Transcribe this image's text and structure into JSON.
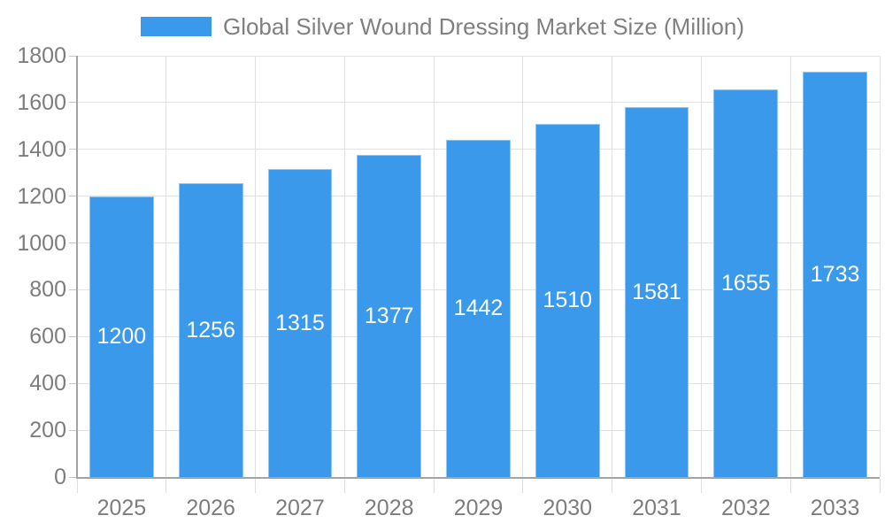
{
  "chart_data": {
    "type": "bar",
    "title": "Global Silver Wound Dressing Market Size (Million)",
    "legend_position": "top",
    "categories": [
      "2025",
      "2026",
      "2027",
      "2028",
      "2029",
      "2030",
      "2031",
      "2032",
      "2033"
    ],
    "values": [
      1200,
      1256,
      1315,
      1377,
      1442,
      1510,
      1581,
      1655,
      1733
    ],
    "xlabel": "",
    "ylabel": "",
    "ylim": [
      0,
      1800
    ],
    "yticks": [
      0,
      200,
      400,
      600,
      800,
      1000,
      1200,
      1400,
      1600,
      1800
    ],
    "grid": true,
    "value_labels": "inside-center",
    "colors": {
      "bar": "#3B99EC",
      "bar_edge": "#8EC4F4",
      "value_label": "#FFFFFF",
      "axis_text": "#7D7D7D",
      "legend_text": "#808080",
      "axis_line": "#A3A3A3",
      "gridline": "#E2E2E2"
    }
  }
}
